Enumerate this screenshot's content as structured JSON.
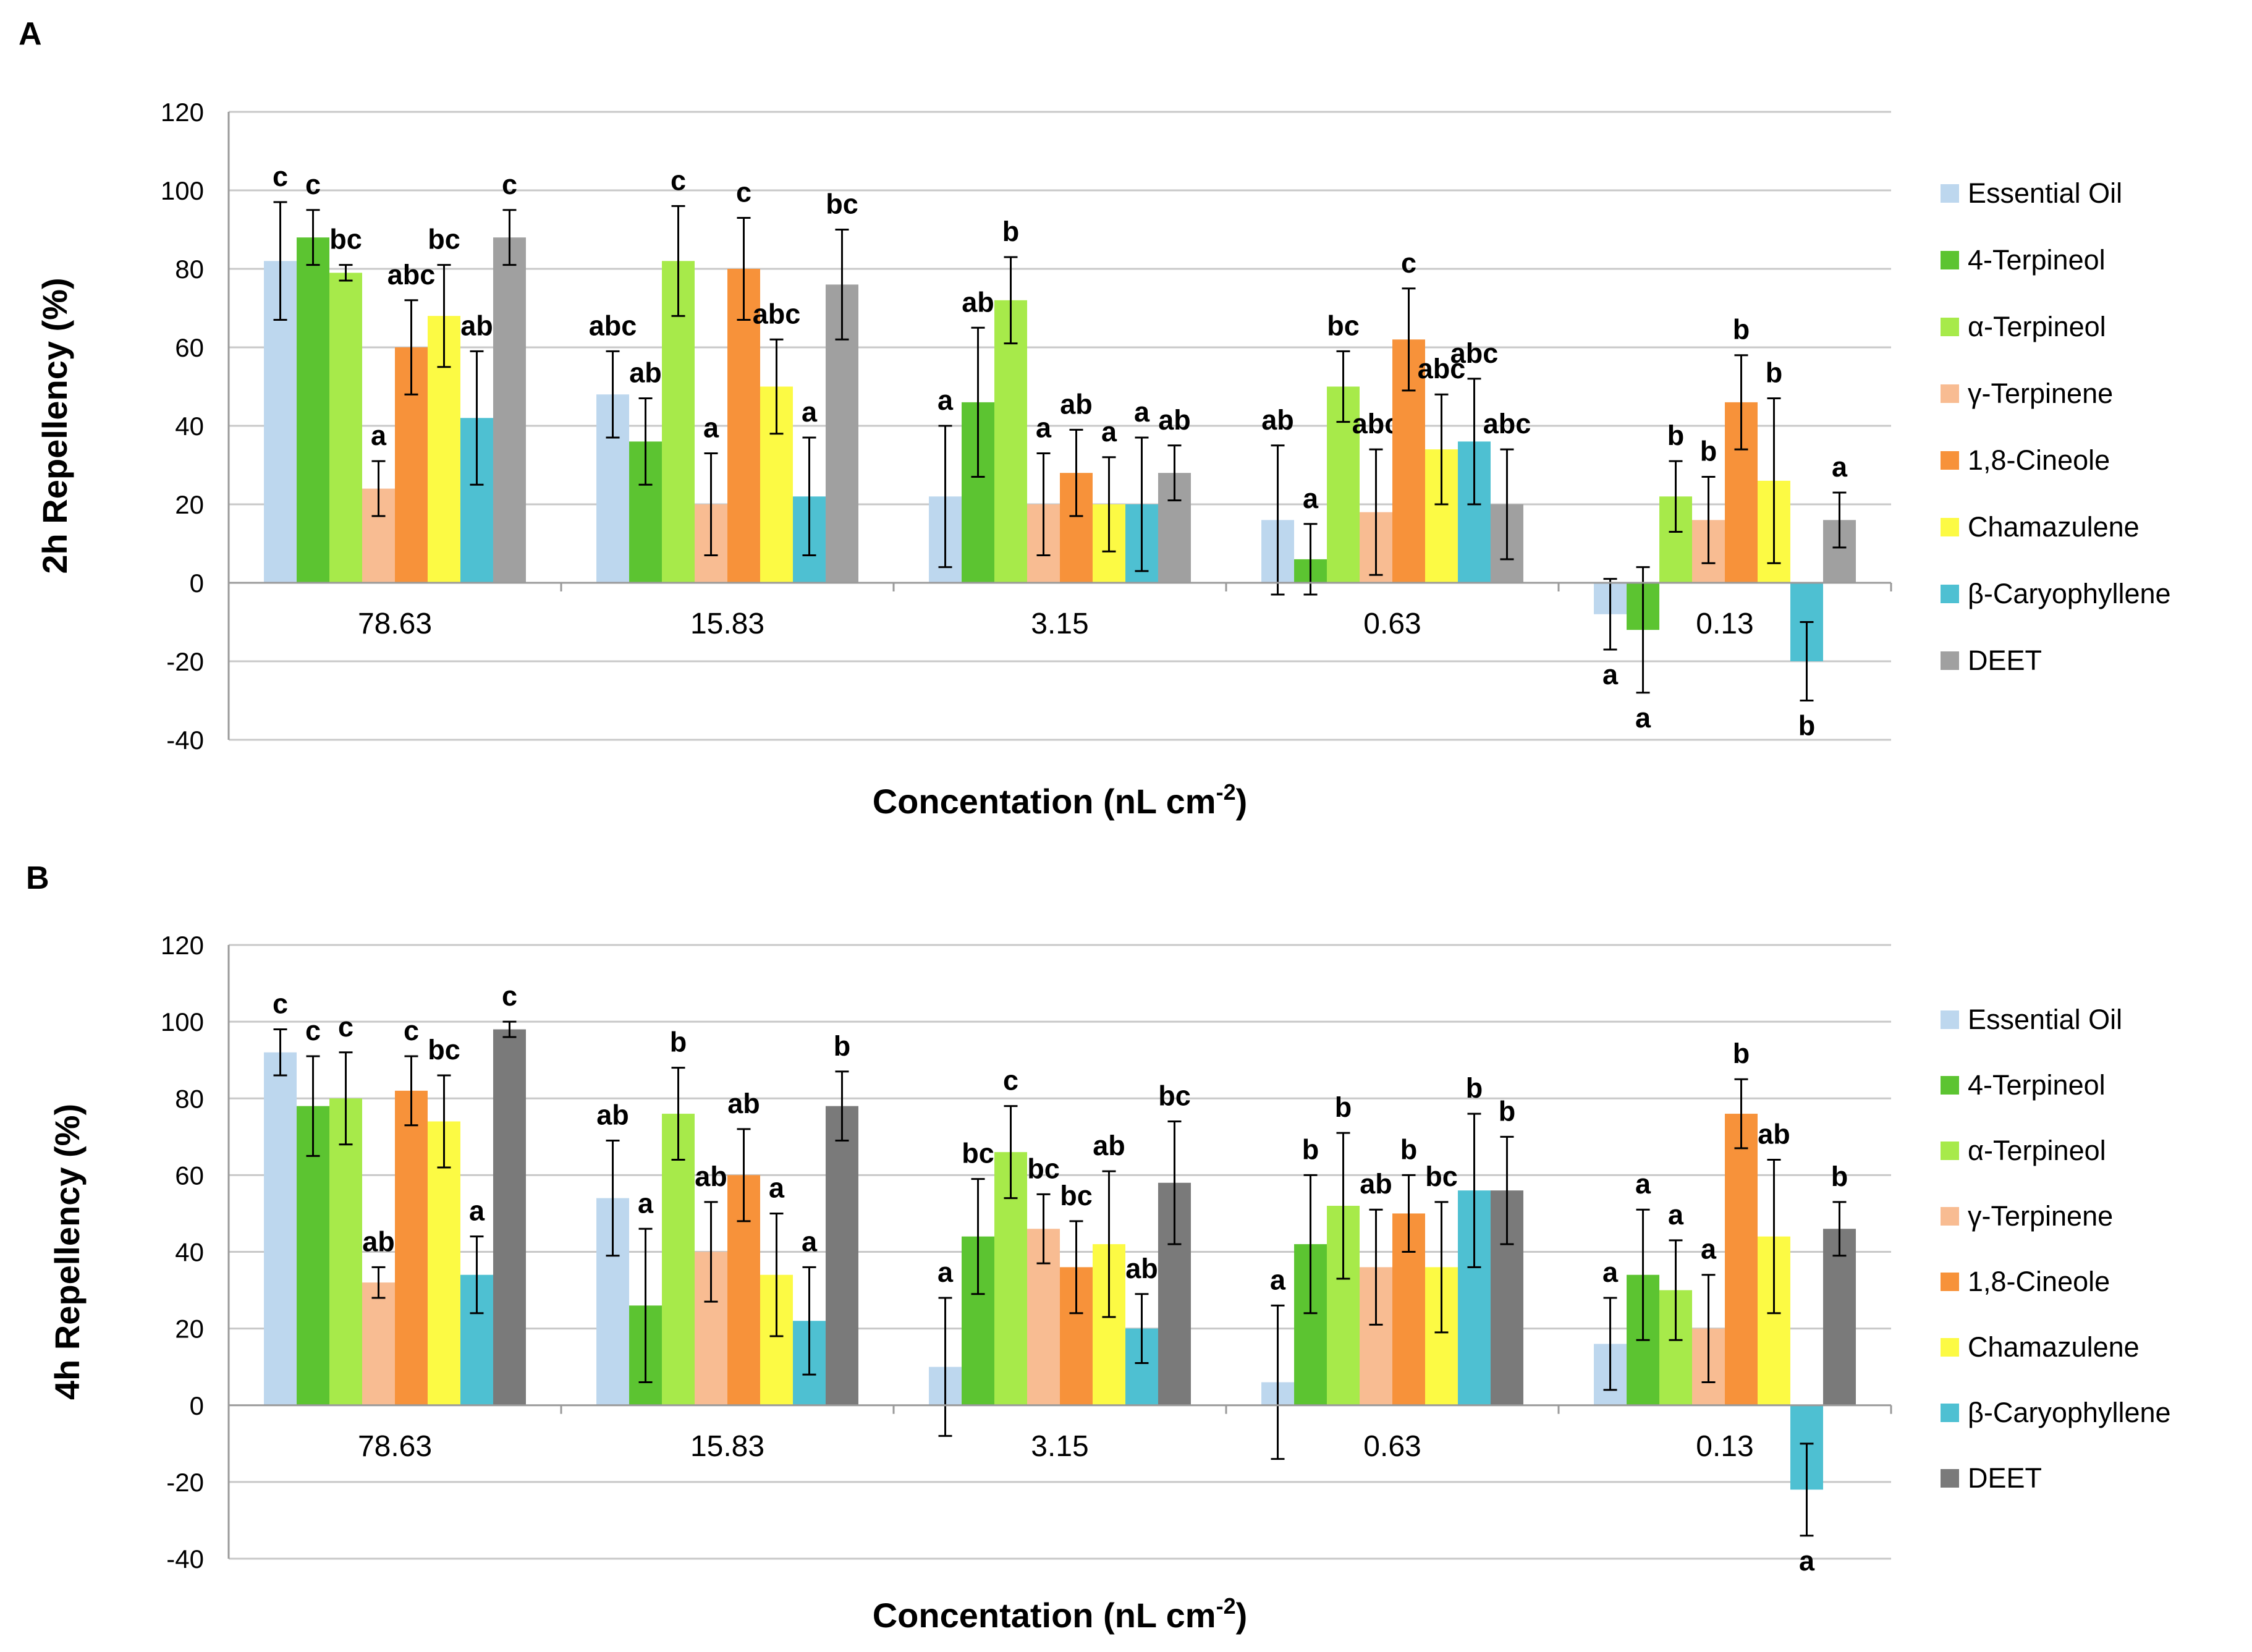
{
  "series_colors": [
    "#bdd7ee",
    "#5cc431",
    "#a7ea4a",
    "#f8bc92",
    "#f7923a",
    "#fcfa44",
    "#4ec0d2",
    "#a0a0a0"
  ],
  "chart_data": [
    {
      "type": "bar",
      "panel": "A",
      "xlabel": "Concentation (nL cm",
      "xlabel_sup": "-2",
      "xlabel_close": ")",
      "ylabel": "2h Repellency (%)",
      "ylim": [
        -40,
        120
      ],
      "yticks": [
        "120",
        "100",
        "80",
        "60",
        "40",
        "20",
        "0",
        "-20",
        "-40"
      ],
      "categories": [
        "78.63",
        "15.83",
        "3.15",
        "0.63",
        "0.13"
      ],
      "legend_position": "right",
      "deet_color": "#a0a0a0",
      "series": [
        {
          "name": "Essential Oil",
          "values": [
            82,
            48,
            22,
            16,
            -8
          ],
          "err": [
            15,
            11,
            18,
            19,
            9
          ],
          "sig": [
            "c",
            "abc",
            "a",
            "ab",
            "a"
          ]
        },
        {
          "name": "4-Terpineol",
          "values": [
            88,
            36,
            46,
            6,
            -12
          ],
          "err": [
            7,
            11,
            19,
            9,
            16
          ],
          "sig": [
            "c",
            "ab",
            "ab",
            "a",
            "a"
          ]
        },
        {
          "name": "α-Terpineol",
          "values": [
            79,
            82,
            72,
            50,
            22
          ],
          "err": [
            2,
            14,
            11,
            9,
            9
          ],
          "sig": [
            "bc",
            "c",
            "b",
            "bc",
            "b"
          ]
        },
        {
          "name": "γ-Terpinene",
          "values": [
            24,
            20,
            20,
            18,
            16
          ],
          "err": [
            7,
            13,
            13,
            16,
            11
          ],
          "sig": [
            "a",
            "a",
            "a",
            "abc",
            "b"
          ]
        },
        {
          "name": "1,8-Cineole",
          "values": [
            60,
            80,
            28,
            62,
            46
          ],
          "err": [
            12,
            13,
            11,
            13,
            12
          ],
          "sig": [
            "abc",
            "c",
            "ab",
            "c",
            "b"
          ]
        },
        {
          "name": "Chamazulene",
          "values": [
            68,
            50,
            20,
            34,
            26
          ],
          "err": [
            13,
            12,
            12,
            14,
            21
          ],
          "sig": [
            "bc",
            "abc",
            "a",
            "abc",
            "b"
          ]
        },
        {
          "name": "β-Caryophyllene",
          "values": [
            42,
            22,
            20,
            36,
            -20
          ],
          "err": [
            17,
            15,
            17,
            16,
            10
          ],
          "sig": [
            "ab",
            "a",
            "a",
            "abc",
            "b"
          ]
        },
        {
          "name": "DEET",
          "values": [
            88,
            76,
            28,
            20,
            16
          ],
          "err": [
            7,
            14,
            7,
            14,
            7
          ],
          "sig": [
            "c",
            "bc",
            "ab",
            "abc",
            "a"
          ]
        }
      ]
    },
    {
      "type": "bar",
      "panel": "B",
      "xlabel": "Concentation (nL cm",
      "xlabel_sup": "-2",
      "xlabel_close": ")",
      "ylabel": "4h Repellency (%)",
      "ylim": [
        -40,
        120
      ],
      "yticks": [
        "120",
        "100",
        "80",
        "60",
        "40",
        "20",
        "0",
        "-20",
        "-40"
      ],
      "categories": [
        "78.63",
        "15.83",
        "3.15",
        "0.63",
        "0.13"
      ],
      "legend_position": "right",
      "deet_color": "#7a7a7a",
      "series": [
        {
          "name": "Essential Oil",
          "values": [
            92,
            54,
            10,
            6,
            16
          ],
          "err": [
            6,
            15,
            18,
            20,
            12
          ],
          "sig": [
            "c",
            "ab",
            "a",
            "a",
            "a"
          ]
        },
        {
          "name": "4-Terpineol",
          "values": [
            78,
            26,
            44,
            42,
            34
          ],
          "err": [
            13,
            20,
            15,
            18,
            17
          ],
          "sig": [
            "c",
            "a",
            "bc",
            "b",
            "a"
          ]
        },
        {
          "name": "α-Terpineol",
          "values": [
            80,
            76,
            66,
            52,
            30
          ],
          "err": [
            12,
            12,
            12,
            19,
            13
          ],
          "sig": [
            "c",
            "b",
            "c",
            "b",
            "a"
          ]
        },
        {
          "name": "γ-Terpinene",
          "values": [
            32,
            40,
            46,
            36,
            20
          ],
          "err": [
            4,
            13,
            9,
            15,
            14
          ],
          "sig": [
            "ab",
            "ab",
            "bc",
            "ab",
            "a"
          ]
        },
        {
          "name": "1,8-Cineole",
          "values": [
            82,
            60,
            36,
            50,
            76
          ],
          "err": [
            9,
            12,
            12,
            10,
            9
          ],
          "sig": [
            "c",
            "ab",
            "bc",
            "b",
            "b"
          ]
        },
        {
          "name": "Chamazulene",
          "values": [
            74,
            34,
            42,
            36,
            44
          ],
          "err": [
            12,
            16,
            19,
            17,
            20
          ],
          "sig": [
            "bc",
            "a",
            "ab",
            "bc",
            "ab"
          ]
        },
        {
          "name": "β-Caryophyllene",
          "values": [
            34,
            22,
            20,
            56,
            -22
          ],
          "err": [
            10,
            14,
            9,
            20,
            12
          ],
          "sig": [
            "a",
            "a",
            "ab",
            "b",
            "a"
          ]
        },
        {
          "name": "DEET",
          "values": [
            98,
            78,
            58,
            56,
            46
          ],
          "err": [
            2,
            9,
            16,
            14,
            7
          ],
          "sig": [
            "c",
            "b",
            "bc",
            "b",
            "b"
          ]
        }
      ]
    }
  ]
}
